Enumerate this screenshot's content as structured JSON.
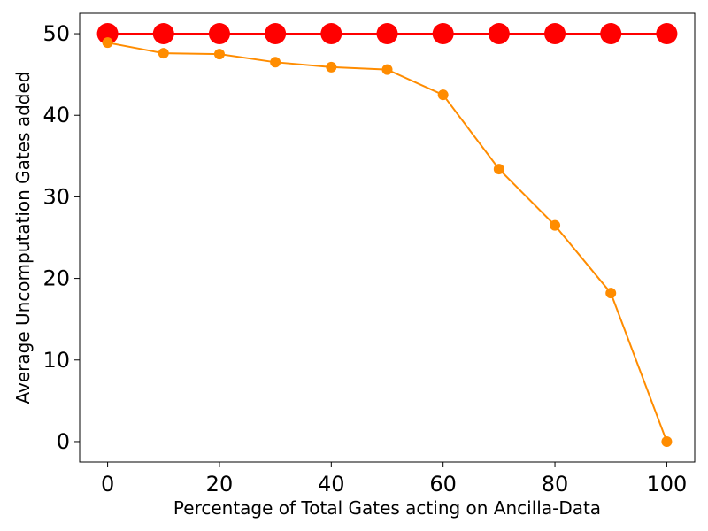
{
  "chart_data": {
    "type": "line",
    "title": "",
    "xlabel": "Percentage of Total Gates acting on Ancilla-Data",
    "ylabel": "Average Uncomputation Gates added",
    "xlim": [
      -5,
      105
    ],
    "ylim": [
      -2.5,
      52.5
    ],
    "xticks": [
      0,
      20,
      40,
      60,
      80,
      100
    ],
    "yticks": [
      0,
      10,
      20,
      30,
      40,
      50
    ],
    "grid": false,
    "legend": "none",
    "x": [
      0,
      10,
      20,
      30,
      40,
      50,
      60,
      70,
      80,
      90,
      100
    ],
    "series": [
      {
        "color": "#ff0000",
        "marker": "large-circle",
        "values": [
          50,
          50,
          50,
          50,
          50,
          50,
          50,
          50,
          50,
          50,
          50
        ]
      },
      {
        "color": "#ff8c00",
        "marker": "circle",
        "values": [
          48.9,
          47.6,
          47.5,
          46.5,
          45.9,
          45.6,
          42.5,
          33.4,
          26.5,
          18.2,
          0
        ]
      }
    ]
  }
}
